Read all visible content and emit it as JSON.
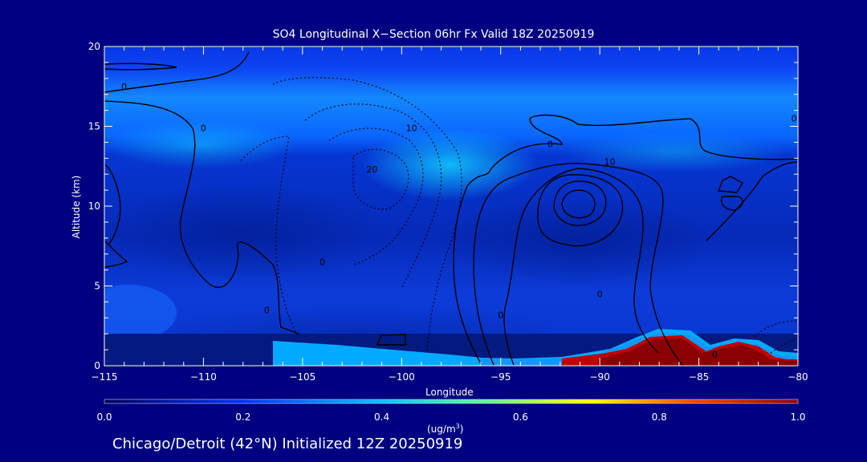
{
  "chart_data": {
    "type": "heatmap",
    "title": "SO4 Longitudinal X−Section 06hr  Fx Valid 18Z 20250919",
    "xlabel": "Longitude",
    "ylabel": "Altitude (km)",
    "xlim": [
      -115,
      -80
    ],
    "ylim": [
      0,
      20
    ],
    "x_ticks": [
      "−115",
      "−110",
      "−105",
      "−100",
      "−95",
      "−90",
      "−85",
      "−80"
    ],
    "y_ticks": [
      "0",
      "5",
      "10",
      "15",
      "20"
    ],
    "colorbar": {
      "ticks": [
        "0.0",
        "0.2",
        "0.4",
        "0.6",
        "0.8",
        "1.0"
      ],
      "range": [
        0.0,
        1.0
      ],
      "units": "(ug/m",
      "units_sup": "3",
      "units_end": ")"
    },
    "contour_labels": [
      {
        "text": "0",
        "x": -114,
        "y": 17.5
      },
      {
        "text": "0",
        "x": -110,
        "y": 14.9
      },
      {
        "text": "10",
        "x": -99.5,
        "y": 14.9
      },
      {
        "text": "20",
        "x": -101.5,
        "y": 12.3
      },
      {
        "text": "0",
        "x": -104,
        "y": 6.5
      },
      {
        "text": "0",
        "x": -106.8,
        "y": 3.5
      },
      {
        "text": "0",
        "x": -92.5,
        "y": 13.9
      },
      {
        "text": "10",
        "x": -89.5,
        "y": 12.8
      },
      {
        "text": "0",
        "x": -95,
        "y": 3.2
      },
      {
        "text": "0",
        "x": -90,
        "y": 4.5
      },
      {
        "text": "0",
        "x": -80.2,
        "y": 15.5
      },
      {
        "text": "0",
        "x": -84.2,
        "y": 0.7
      }
    ],
    "high_concentration_regions": [
      {
        "description": "surface maximum",
        "lon_range": [
          -88,
          -80.5
        ],
        "alt_range": [
          0,
          2.4
        ],
        "value": 1.0
      }
    ]
  },
  "footer": "Chicago/Detroit (42°N) Initialized 12Z 20250919"
}
